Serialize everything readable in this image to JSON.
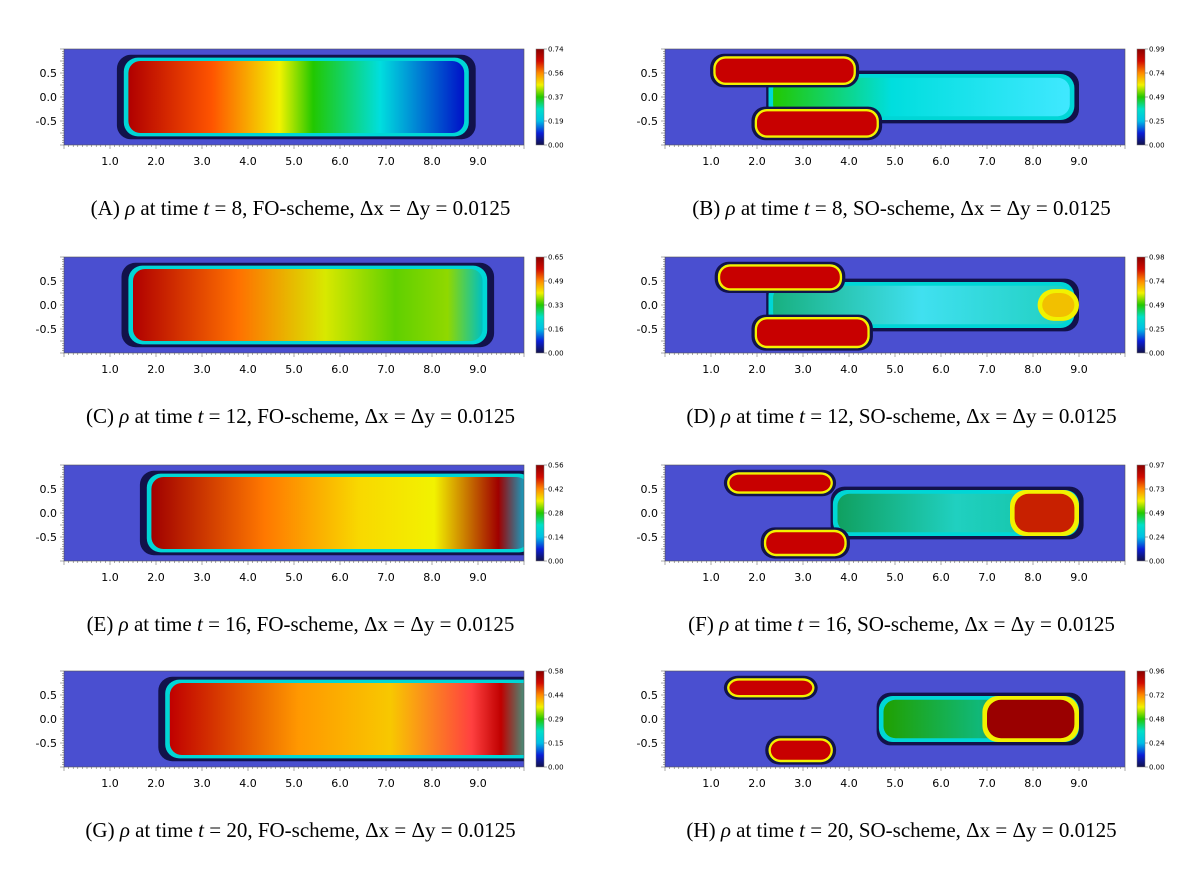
{
  "colors": {
    "background_field": "#4a4fd0",
    "colormap": [
      "#12124a",
      "#0a1ed8",
      "#00bfe6",
      "#00e0c8",
      "#22c800",
      "#f2f200",
      "#ff8a00",
      "#d20a00",
      "#8a0000"
    ]
  },
  "axis": {
    "x_ticks": [
      "1.0",
      "2.0",
      "3.0",
      "4.0",
      "5.0",
      "6.0",
      "7.0",
      "8.0",
      "9.0"
    ],
    "y_ticks": [
      "0.5",
      "0.0",
      "-0.5"
    ]
  },
  "panels": [
    {
      "id": "A",
      "label": "(A)",
      "scheme": "FO",
      "caption_pre": "at time",
      "caption_post": "= 8, FO-scheme,",
      "colorbar": [
        "0.74",
        "0.56",
        "0.37",
        "0.19",
        "0.00"
      ],
      "max": 0.74,
      "t": 8
    },
    {
      "id": "B",
      "label": "(B)",
      "scheme": "SO",
      "caption_pre": "at time",
      "caption_post": "= 8, SO-scheme,",
      "colorbar": [
        "0.99",
        "0.74",
        "0.49",
        "0.25",
        "0.00"
      ],
      "max": 0.99,
      "t": 8
    },
    {
      "id": "C",
      "label": "(C)",
      "scheme": "FO",
      "caption_pre": "at time",
      "caption_post": "= 12, FO-scheme,",
      "colorbar": [
        "0.65",
        "0.49",
        "0.33",
        "0.16",
        "0.00"
      ],
      "max": 0.65,
      "t": 12
    },
    {
      "id": "D",
      "label": "(D)",
      "scheme": "SO",
      "caption_pre": "at time",
      "caption_post": "= 12, SO-scheme,",
      "colorbar": [
        "0.98",
        "0.74",
        "0.49",
        "0.25",
        "0.00"
      ],
      "max": 0.98,
      "t": 12
    },
    {
      "id": "E",
      "label": "(E)",
      "scheme": "FO",
      "caption_pre": "at time",
      "caption_post": "= 16, FO-scheme,",
      "colorbar": [
        "0.56",
        "0.42",
        "0.28",
        "0.14",
        "0.00"
      ],
      "max": 0.56,
      "t": 16
    },
    {
      "id": "F",
      "label": "(F)",
      "scheme": "SO",
      "caption_pre": "at time",
      "caption_post": "= 16, SO-scheme,",
      "colorbar": [
        "0.97",
        "0.73",
        "0.49",
        "0.24",
        "0.00"
      ],
      "max": 0.97,
      "t": 16
    },
    {
      "id": "G",
      "label": "(G)",
      "scheme": "FO",
      "caption_pre": "at time",
      "caption_post": "= 20, FO-scheme,",
      "colorbar": [
        "0.58",
        "0.44",
        "0.29",
        "0.15",
        "0.00"
      ],
      "max": 0.58,
      "t": 20
    },
    {
      "id": "H",
      "label": "(H)",
      "scheme": "SO",
      "caption_pre": "at time",
      "caption_post": "= 20, SO-scheme,",
      "colorbar": [
        "0.96",
        "0.72",
        "0.48",
        "0.24",
        "0.00"
      ],
      "max": 0.96,
      "t": 20
    }
  ],
  "caption_common": {
    "rho": "ρ",
    "t": "t",
    "grid": "Δx = Δy = 0.0125"
  }
}
